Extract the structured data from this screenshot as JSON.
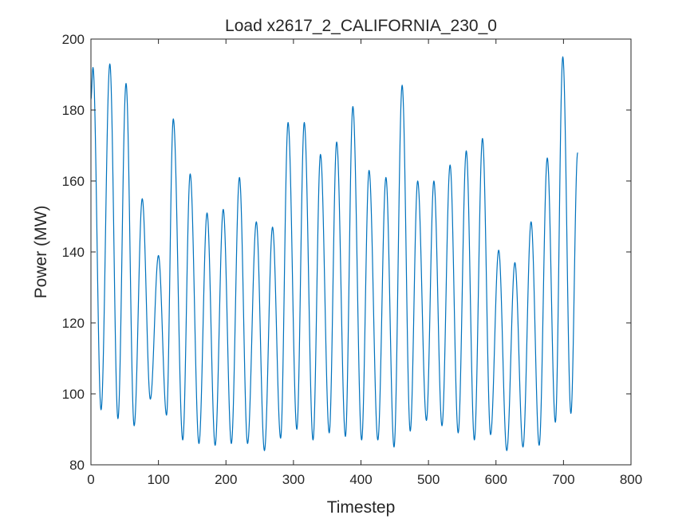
{
  "chart_data": {
    "type": "line",
    "title": "Load x2617_2_CALIFORNIA_230_0",
    "xlabel": "Timestep",
    "ylabel": "Power (MW)",
    "xlim": [
      0,
      800
    ],
    "ylim": [
      80,
      200
    ],
    "xticks": [
      0,
      100,
      200,
      300,
      400,
      500,
      600,
      700,
      800
    ],
    "yticks": [
      80,
      100,
      120,
      140,
      160,
      180,
      200
    ],
    "grid": false,
    "legend": "none",
    "series": [
      {
        "color": "#0072bd",
        "peaks": [
          {
            "x": 3,
            "y": 192
          },
          {
            "x": 28,
            "y": 193
          },
          {
            "x": 52,
            "y": 187.5
          },
          {
            "x": 76,
            "y": 155
          },
          {
            "x": 100,
            "y": 139
          },
          {
            "x": 122,
            "y": 177.5
          },
          {
            "x": 147,
            "y": 162
          },
          {
            "x": 172,
            "y": 151
          },
          {
            "x": 196,
            "y": 152
          },
          {
            "x": 220,
            "y": 161
          },
          {
            "x": 245,
            "y": 148.5
          },
          {
            "x": 269,
            "y": 147
          },
          {
            "x": 292,
            "y": 176.5
          },
          {
            "x": 316,
            "y": 176.5
          },
          {
            "x": 340,
            "y": 167.5
          },
          {
            "x": 364,
            "y": 171
          },
          {
            "x": 388,
            "y": 181
          },
          {
            "x": 412,
            "y": 163
          },
          {
            "x": 437,
            "y": 161
          },
          {
            "x": 461,
            "y": 187
          },
          {
            "x": 484,
            "y": 160
          },
          {
            "x": 508,
            "y": 160
          },
          {
            "x": 532,
            "y": 164.5
          },
          {
            "x": 556,
            "y": 168.5
          },
          {
            "x": 580,
            "y": 172
          },
          {
            "x": 604,
            "y": 140.5
          },
          {
            "x": 628,
            "y": 137
          },
          {
            "x": 652,
            "y": 148.5
          },
          {
            "x": 676,
            "y": 166.5
          },
          {
            "x": 699,
            "y": 195
          }
        ],
        "troughs": [
          {
            "x": 15,
            "y": 95.5
          },
          {
            "x": 40,
            "y": 93
          },
          {
            "x": 64,
            "y": 91
          },
          {
            "x": 88,
            "y": 98.5
          },
          {
            "x": 112,
            "y": 94
          },
          {
            "x": 136,
            "y": 87
          },
          {
            "x": 160,
            "y": 86
          },
          {
            "x": 184,
            "y": 85.5
          },
          {
            "x": 208,
            "y": 86
          },
          {
            "x": 232,
            "y": 86
          },
          {
            "x": 257,
            "y": 84
          },
          {
            "x": 281,
            "y": 87.5
          },
          {
            "x": 305,
            "y": 90
          },
          {
            "x": 329,
            "y": 87
          },
          {
            "x": 353,
            "y": 89
          },
          {
            "x": 377,
            "y": 88
          },
          {
            "x": 401,
            "y": 87
          },
          {
            "x": 425,
            "y": 87
          },
          {
            "x": 449,
            "y": 85
          },
          {
            "x": 473,
            "y": 89.5
          },
          {
            "x": 497,
            "y": 92.5
          },
          {
            "x": 520,
            "y": 91
          },
          {
            "x": 544,
            "y": 89
          },
          {
            "x": 568,
            "y": 87
          },
          {
            "x": 592,
            "y": 88.5
          },
          {
            "x": 616,
            "y": 84
          },
          {
            "x": 640,
            "y": 85
          },
          {
            "x": 664,
            "y": 85.5
          },
          {
            "x": 688,
            "y": 92
          },
          {
            "x": 711,
            "y": 94.5
          }
        ],
        "start": {
          "x": 0,
          "y": 183
        },
        "end": {
          "x": 721,
          "y": 168
        }
      }
    ]
  }
}
